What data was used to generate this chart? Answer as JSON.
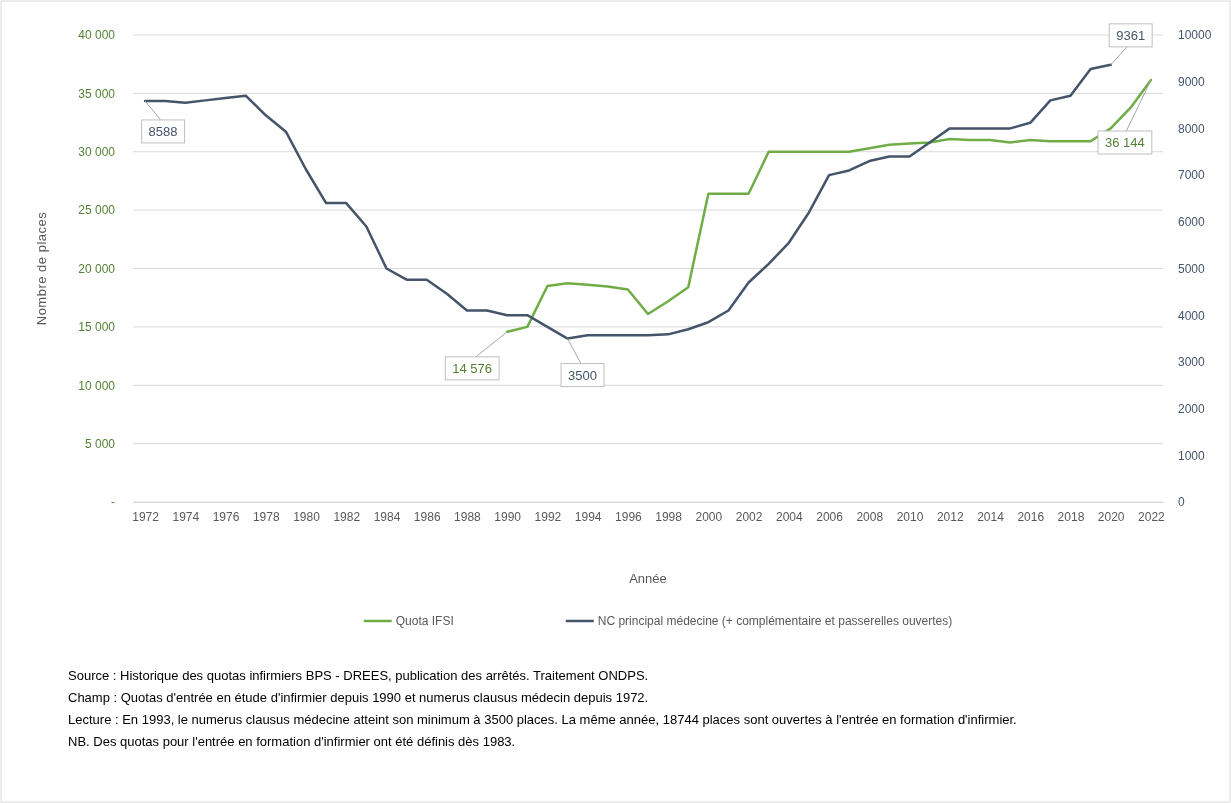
{
  "chart_data": {
    "type": "line",
    "xlabel": "Année",
    "ylabel": "Nombre de places",
    "xlim": [
      1971.4,
      2022.6
    ],
    "xticks": [
      1972,
      1974,
      1976,
      1978,
      1980,
      1982,
      1984,
      1986,
      1988,
      1990,
      1992,
      1994,
      1996,
      1998,
      2000,
      2002,
      2004,
      2006,
      2008,
      2010,
      2012,
      2014,
      2016,
      2018,
      2020,
      2022
    ],
    "ylim": [
      0,
      40000
    ],
    "yticks": [
      {
        "value": 0,
        "label": "-"
      },
      {
        "value": 5000,
        "label": "5 000"
      },
      {
        "value": 10000,
        "label": "10 000"
      },
      {
        "value": 15000,
        "label": "15 000"
      },
      {
        "value": 20000,
        "label": "20 000"
      },
      {
        "value": 25000,
        "label": "25 000"
      },
      {
        "value": 30000,
        "label": "30 000"
      },
      {
        "value": 35000,
        "label": "35 000"
      },
      {
        "value": 40000,
        "label": "40 000"
      }
    ],
    "y2lim": [
      0,
      10000
    ],
    "y2ticks": [
      0,
      1000,
      2000,
      3000,
      4000,
      5000,
      6000,
      7000,
      8000,
      9000,
      10000
    ],
    "grid": "y",
    "legend": "bottom",
    "line_style": "solid",
    "marker": "none",
    "series": [
      {
        "name": "Quota IFSI",
        "color": "#70ad47",
        "x": [
          1990,
          1991,
          1992,
          1993,
          1994,
          1995,
          1996,
          1997,
          1998,
          1999,
          2000,
          2001,
          2002,
          2003,
          2004,
          2005,
          2006,
          2007,
          2008,
          2009,
          2010,
          2011,
          2012,
          2013,
          2014,
          2015,
          2016,
          2017,
          2018,
          2019,
          2020,
          2021,
          2022
        ],
        "values": [
          14576,
          15000,
          18500,
          18744,
          18600,
          18450,
          18200,
          16100,
          17200,
          18400,
          26400,
          26400,
          26400,
          30000,
          30000,
          30000,
          30000,
          30000,
          30300,
          30600,
          30700,
          30800,
          31100,
          31000,
          31000,
          30800,
          31000,
          30900,
          30900,
          30900,
          32000,
          33800,
          36144
        ],
        "value_labels": [
          "14 576",
          null,
          null,
          null,
          null,
          null,
          null,
          null,
          null,
          null,
          null,
          null,
          null,
          null,
          null,
          null,
          null,
          null,
          null,
          null,
          null,
          null,
          null,
          null,
          null,
          null,
          null,
          null,
          null,
          null,
          null,
          null,
          "36 144"
        ]
      },
      {
        "name": "NC principal médecine (+ complémentaire et passerelles ouvertes)",
        "color": "#44546a",
        "axis": "y2",
        "x": [
          1972,
          1973,
          1974,
          1975,
          1976,
          1977,
          1978,
          1979,
          1980,
          1981,
          1982,
          1983,
          1984,
          1985,
          1986,
          1987,
          1988,
          1989,
          1990,
          1991,
          1992,
          1993,
          1994,
          1995,
          1996,
          1997,
          1998,
          1999,
          2000,
          2001,
          2002,
          2003,
          2004,
          2005,
          2006,
          2007,
          2008,
          2009,
          2010,
          2011,
          2012,
          2013,
          2014,
          2015,
          2016,
          2017,
          2018,
          2019,
          2020
        ],
        "values": [
          8588,
          8588,
          8550,
          8600,
          8650,
          8700,
          8280,
          7930,
          7120,
          6400,
          6400,
          5900,
          5000,
          4760,
          4760,
          4460,
          4100,
          4100,
          4000,
          4000,
          3750,
          3500,
          3570,
          3570,
          3570,
          3570,
          3590,
          3700,
          3850,
          4100,
          4700,
          5100,
          5550,
          6200,
          7000,
          7100,
          7300,
          7400,
          7400,
          7700,
          8000,
          8000,
          8000,
          8000,
          8120,
          8600,
          8700,
          9270,
          9361
        ],
        "value_labels": [
          "8588",
          null,
          null,
          null,
          null,
          null,
          null,
          null,
          null,
          null,
          null,
          null,
          null,
          null,
          null,
          null,
          null,
          null,
          null,
          null,
          null,
          "3500",
          null,
          null,
          null,
          null,
          null,
          null,
          null,
          null,
          null,
          null,
          null,
          null,
          null,
          null,
          null,
          null,
          null,
          null,
          null,
          null,
          null,
          null,
          null,
          null,
          null,
          null,
          "9361"
        ]
      }
    ],
    "annotations": [
      "Source : Historique des quotas infirmiers BPS - DREES, publication des arrêtés. Traitement ONDPS.",
      "Champ : Quotas d'entrée en étude d'infirmier depuis 1990 et numerus clausus médecin depuis 1972.",
      "Lecture : En 1993, le numerus clausus médecine atteint son minimum à 3500 places. La même année, 18744 places sont ouvertes à l'entrée en formation d'infirmier.",
      "NB. Des quotas pour l'entrée en formation d'infirmier ont été définis dès 1983."
    ]
  }
}
